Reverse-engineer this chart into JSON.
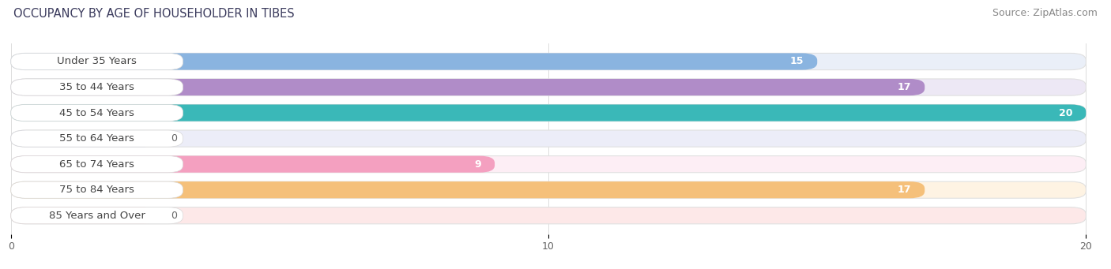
{
  "title": "OCCUPANCY BY AGE OF HOUSEHOLDER IN TIBES",
  "source": "Source: ZipAtlas.com",
  "categories": [
    "Under 35 Years",
    "35 to 44 Years",
    "45 to 54 Years",
    "55 to 64 Years",
    "65 to 74 Years",
    "75 to 84 Years",
    "85 Years and Over"
  ],
  "values": [
    15,
    17,
    20,
    0,
    9,
    17,
    0
  ],
  "bar_colors": [
    "#8ab4e0",
    "#b08cc8",
    "#3ab8b8",
    "#aab0e8",
    "#f4a0c0",
    "#f5c07a",
    "#f4a8a8"
  ],
  "bar_bg_colors": [
    "#eaeff8",
    "#ede8f5",
    "#e0f2f2",
    "#ecedf8",
    "#fdeef5",
    "#fef3e3",
    "#fde8e8"
  ],
  "zero_bar_colors": [
    "#c0c4e8",
    "#f0b0c8",
    "#f4b8b8"
  ],
  "xlim_max": 20,
  "xticks": [
    0,
    10,
    20
  ],
  "title_fontsize": 10.5,
  "source_fontsize": 9,
  "label_fontsize": 9.5,
  "value_fontsize": 9,
  "bar_height": 0.65,
  "background_color": "#ffffff",
  "grid_color": "#d8d8d8",
  "label_bg_color": "#ffffff",
  "label_text_color": "#444444"
}
